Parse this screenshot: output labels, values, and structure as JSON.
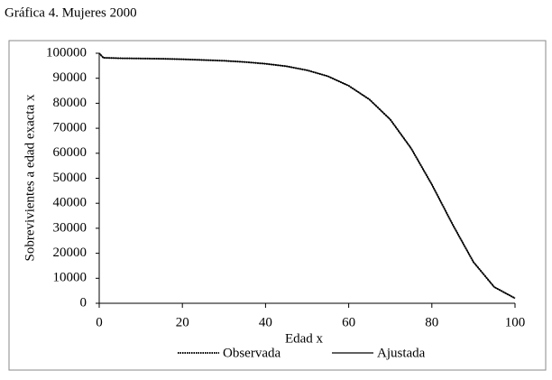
{
  "chart_data": {
    "type": "line",
    "title": "Gráfica 4. Mujeres 2000",
    "x_label": "Edad x",
    "y_label": "Sobrevivientes a edad exacta x",
    "x": [
      0,
      1,
      5,
      10,
      15,
      20,
      25,
      30,
      35,
      40,
      45,
      50,
      55,
      60,
      65,
      70,
      75,
      80,
      85,
      90,
      95,
      100
    ],
    "series": [
      {
        "name": "Observada",
        "color": "#000000",
        "dash": "dotted",
        "values": [
          100000,
          98200,
          98000,
          97900,
          97800,
          97600,
          97300,
          97000,
          96500,
          95800,
          94800,
          93200,
          90800,
          87000,
          81500,
          73500,
          62000,
          47500,
          31500,
          16500,
          6500,
          2000
        ]
      },
      {
        "name": "Ajustada",
        "color": "#000000",
        "dash": "solid",
        "values": [
          100000,
          98200,
          98000,
          97900,
          97800,
          97600,
          97300,
          97000,
          96500,
          95800,
          94800,
          93200,
          90800,
          87000,
          81500,
          73500,
          62000,
          47500,
          31500,
          16500,
          6500,
          2000
        ]
      }
    ],
    "xlim": [
      0,
      100
    ],
    "xticks": [
      0,
      20,
      40,
      60,
      80,
      100
    ],
    "ylim": [
      0,
      100000
    ],
    "yticks": [
      0,
      10000,
      20000,
      30000,
      40000,
      50000,
      60000,
      70000,
      80000,
      90000,
      100000
    ],
    "grid": false,
    "legend": "bottom"
  }
}
